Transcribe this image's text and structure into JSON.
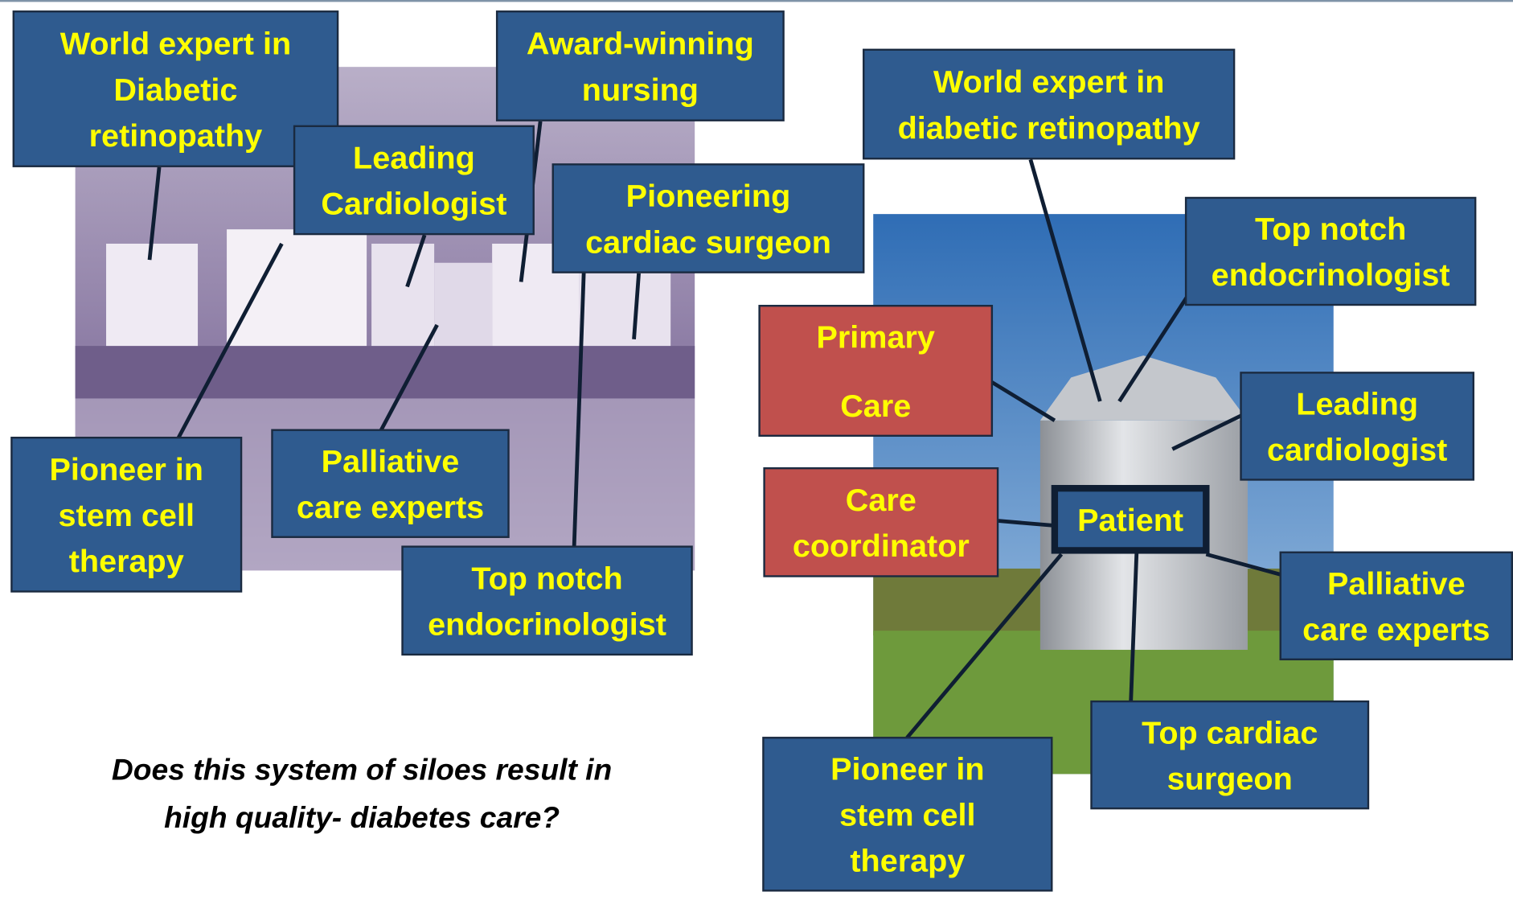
{
  "left_boxes": [
    {
      "lines": [
        "World expert in",
        "Diabetic",
        "retinopathy"
      ]
    },
    {
      "lines": [
        "Award-winning",
        "nursing"
      ]
    },
    {
      "lines": [
        "Leading",
        "Cardiologist"
      ]
    },
    {
      "lines": [
        "Pioneering",
        "cardiac surgeon"
      ]
    },
    {
      "lines": [
        "Pioneer in",
        "stem cell",
        "therapy"
      ]
    },
    {
      "lines": [
        "Palliative",
        "care experts"
      ]
    },
    {
      "lines": [
        "Top notch",
        "endocrinologist"
      ]
    }
  ],
  "right_boxes": [
    {
      "lines": [
        "World expert in",
        "diabetic retinopathy"
      ]
    },
    {
      "lines": [
        "Top notch",
        "endocrinologist"
      ]
    },
    {
      "lines": [
        "Primary",
        "Care"
      ]
    },
    {
      "lines": [
        "Leading",
        "cardiologist"
      ]
    },
    {
      "lines": [
        "Care",
        "coordinator"
      ]
    },
    {
      "lines": [
        "Patient"
      ]
    },
    {
      "lines": [
        "Palliative",
        "care experts"
      ]
    },
    {
      "lines": [
        "Top cardiac",
        "surgeon"
      ]
    },
    {
      "lines": [
        "Pioneer in",
        "stem cell",
        "therapy"
      ]
    }
  ],
  "question": {
    "lines": [
      "Does this system of siloes result in",
      "high quality- diabetes care?"
    ]
  }
}
